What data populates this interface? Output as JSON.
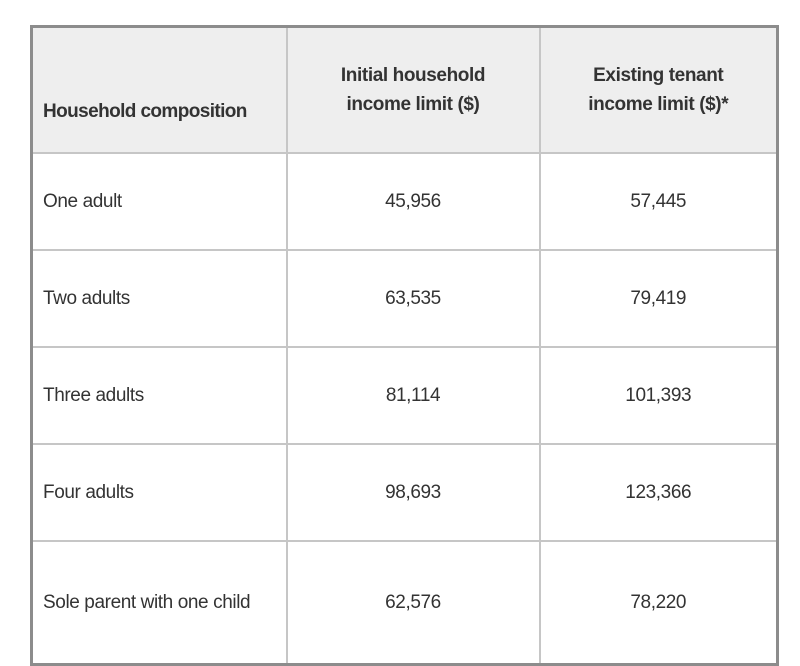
{
  "chart_data": {
    "type": "table",
    "columns": [
      "Household composition",
      "Initial household income limit ($)",
      "Existing tenant income limit ($)*"
    ],
    "rows": [
      [
        "One adult",
        "45,956",
        "57,445"
      ],
      [
        "Two adults",
        "63,535",
        "79,419"
      ],
      [
        "Three adults",
        "81,114",
        "101,393"
      ],
      [
        "Four adults",
        "98,693",
        "123,366"
      ],
      [
        "Sole parent with one child",
        "62,576",
        "78,220"
      ]
    ],
    "layout_hints": {
      "header_background": "#eeeeee",
      "outer_border_color": "#8c8c8c",
      "grid_line_color": "#c6c6c6",
      "text_color": "#333333",
      "page_background": "#ffffff",
      "last_row_clipped_by_viewport": true
    }
  }
}
